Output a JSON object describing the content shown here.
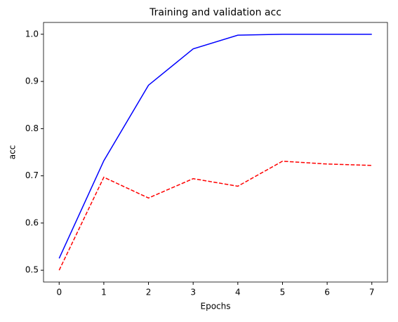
{
  "chart_data": {
    "type": "line",
    "title": "Training and validation acc",
    "x_label": "Epochs",
    "y_label": "acc",
    "x": [
      0,
      1,
      2,
      3,
      4,
      5,
      6,
      7
    ],
    "series": [
      {
        "color": "#0000ff",
        "style": "solid",
        "values": [
          0.525,
          0.732,
          0.892,
          0.969,
          0.998,
          1.0,
          1.0,
          1.0
        ]
      },
      {
        "color": "#ff0000",
        "style": "dashed",
        "values": [
          0.5,
          0.697,
          0.653,
          0.694,
          0.678,
          0.731,
          0.725,
          0.722
        ]
      }
    ],
    "xlim": [
      -0.35,
      7.35
    ],
    "xticks": [
      0,
      1,
      2,
      3,
      4,
      5,
      6,
      7
    ],
    "ylim": [
      0.475,
      1.025
    ],
    "yticks": [
      0.5,
      0.6,
      0.7,
      0.8,
      0.9,
      {
        "value": 1.0,
        "label": "1.0"
      }
    ],
    "grid": false
  }
}
